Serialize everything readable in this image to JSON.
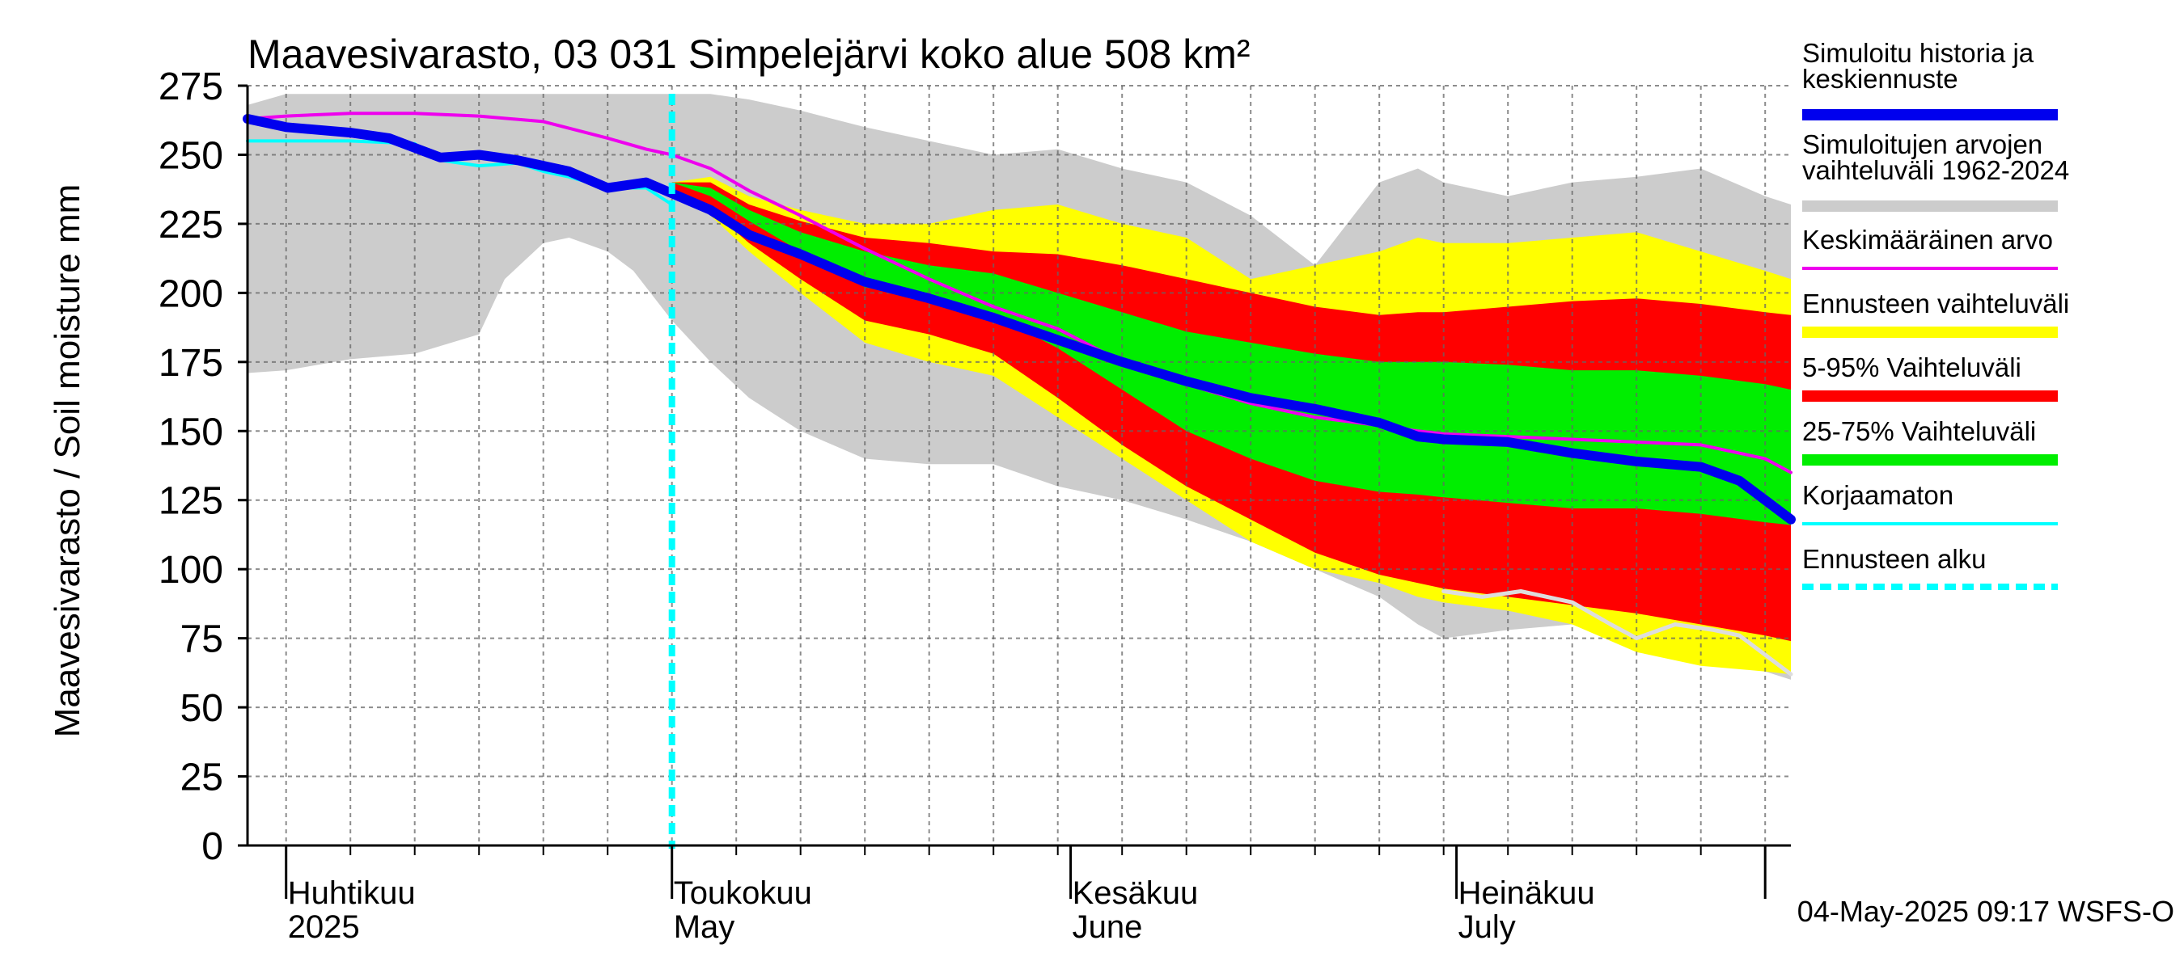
{
  "chart_data": {
    "type": "area",
    "title": "Maavesivarasto, 03 031 Simpelejärvi koko alue 508 km²",
    "ylabel": "Maavesivarasto / Soil moisture   mm",
    "xlabel": "",
    "ylim": [
      0,
      275
    ],
    "yticks": [
      0,
      25,
      50,
      75,
      100,
      125,
      150,
      175,
      200,
      225,
      250,
      275
    ],
    "xlim_days": [
      -3,
      117
    ],
    "x_unit": "days since 2025-04-01",
    "forecast_start_day": 30,
    "grid": true,
    "legend_position": "right",
    "month_labels": [
      {
        "day": 0,
        "fi": "Huhtikuu",
        "en": "2025"
      },
      {
        "day": 30,
        "fi": "Toukokuu",
        "en": "May"
      },
      {
        "day": 61,
        "fi": "Kesäkuu",
        "en": "June"
      },
      {
        "day": 91,
        "fi": "Heinäkuu",
        "en": "July"
      }
    ],
    "legend": [
      {
        "label": "Simuloitu historia ja keskiennuste",
        "color": "#0000ee"
      },
      {
        "label": "Simuloitujen arvojen vaihteluväli 1962-2024",
        "color": "#cccccc"
      },
      {
        "label": "Keskimääräinen arvo",
        "color": "#ee00ee"
      },
      {
        "label": "Ennusteen vaihteluväli",
        "color": "#ffff00"
      },
      {
        "label": "5-95% Vaihteluväli",
        "color": "#ff0000"
      },
      {
        "label": "25-75% Vaihteluväli",
        "color": "#00ee00"
      },
      {
        "label": "Korjaamaton",
        "color": "#00ffff"
      },
      {
        "label": "Ennusteen alku",
        "color": "#00ffff"
      }
    ],
    "timestamp": "04-May-2025 09:17 WSFS-O",
    "series": [
      {
        "name": "Simuloitujen arvojen vaihteluväli 1962-2024",
        "kind": "band",
        "color": "#cccccc",
        "x": [
          -3,
          0,
          5,
          10,
          15,
          17,
          20,
          22,
          25,
          27,
          30,
          33,
          36,
          40,
          45,
          50,
          55,
          60,
          65,
          70,
          75,
          80,
          85,
          88,
          90,
          95,
          100,
          105,
          110,
          115,
          117
        ],
        "lower": [
          171,
          172,
          176,
          178,
          185,
          205,
          218,
          220,
          215,
          208,
          190,
          175,
          162,
          150,
          140,
          138,
          138,
          130,
          125,
          118,
          110,
          100,
          90,
          80,
          75,
          78,
          80,
          75,
          68,
          63,
          60
        ],
        "upper": [
          268,
          272,
          272,
          272,
          272,
          272,
          272,
          272,
          272,
          272,
          272,
          272,
          270,
          266,
          260,
          255,
          250,
          252,
          245,
          240,
          228,
          210,
          240,
          245,
          240,
          235,
          240,
          242,
          245,
          235,
          232
        ]
      },
      {
        "name": "Ennusteen vaihteluväli",
        "kind": "band",
        "color": "#ffff00",
        "x": [
          30,
          33,
          36,
          40,
          45,
          50,
          55,
          60,
          65,
          70,
          75,
          80,
          85,
          88,
          90,
          95,
          100,
          105,
          110,
          115,
          117
        ],
        "lower": [
          238,
          228,
          215,
          200,
          182,
          175,
          170,
          155,
          140,
          125,
          110,
          100,
          95,
          90,
          88,
          85,
          80,
          70,
          65,
          63,
          62
        ],
        "upper": [
          240,
          242,
          235,
          230,
          225,
          225,
          230,
          232,
          225,
          220,
          205,
          210,
          215,
          220,
          218,
          218,
          220,
          222,
          215,
          208,
          205
        ]
      },
      {
        "name": "5-95% Vaihteluväli",
        "kind": "band",
        "color": "#ff0000",
        "x": [
          30,
          33,
          36,
          40,
          45,
          50,
          55,
          60,
          65,
          70,
          75,
          80,
          85,
          88,
          90,
          95,
          100,
          105,
          110,
          115,
          117
        ],
        "lower": [
          238,
          230,
          218,
          205,
          190,
          185,
          178,
          162,
          145,
          130,
          118,
          106,
          98,
          95,
          93,
          90,
          87,
          84,
          80,
          76,
          74
        ],
        "upper": [
          240,
          240,
          232,
          226,
          220,
          218,
          215,
          214,
          210,
          205,
          200,
          195,
          192,
          193,
          193,
          195,
          197,
          198,
          196,
          193,
          192
        ]
      },
      {
        "name": "25-75% Vaihteluväli",
        "kind": "band",
        "color": "#00ee00",
        "x": [
          30,
          33,
          36,
          40,
          45,
          50,
          55,
          60,
          65,
          70,
          75,
          80,
          85,
          88,
          90,
          95,
          100,
          105,
          110,
          115,
          117
        ],
        "lower": [
          240,
          235,
          226,
          215,
          202,
          198,
          192,
          180,
          165,
          150,
          140,
          132,
          128,
          127,
          126,
          124,
          122,
          122,
          120,
          117,
          116
        ],
        "upper": [
          240,
          238,
          230,
          222,
          215,
          210,
          207,
          200,
          193,
          186,
          182,
          178,
          175,
          175,
          175,
          174,
          172,
          172,
          170,
          167,
          165
        ]
      },
      {
        "name": "Keskimääräinen arvo",
        "kind": "line",
        "color": "#ee00ee",
        "x": [
          -3,
          0,
          5,
          10,
          15,
          20,
          25,
          28,
          30,
          33,
          36,
          40,
          45,
          50,
          55,
          60,
          65,
          70,
          75,
          80,
          85,
          88,
          90,
          95,
          100,
          105,
          110,
          115,
          117
        ],
        "y": [
          263,
          264,
          265,
          265,
          264,
          262,
          256,
          252,
          250,
          245,
          237,
          228,
          216,
          205,
          195,
          187,
          175,
          167,
          160,
          155,
          152,
          150,
          149,
          148,
          147,
          146,
          145,
          140,
          135
        ]
      },
      {
        "name": "Korjaamaton",
        "kind": "line",
        "color": "#00ffff",
        "x": [
          -3,
          0,
          5,
          10,
          12,
          15,
          18,
          20,
          22,
          25,
          28,
          30
        ],
        "y": [
          255,
          255,
          255,
          254,
          248,
          246,
          247,
          244,
          242,
          238,
          238,
          232
        ]
      },
      {
        "name": "Simuloitu historia ja keskiennuste",
        "kind": "line",
        "color": "#0000ee",
        "x": [
          -3,
          0,
          5,
          8,
          12,
          15,
          18,
          22,
          25,
          28,
          30,
          33,
          36,
          40,
          45,
          50,
          55,
          60,
          65,
          70,
          75,
          80,
          85,
          88,
          90,
          95,
          100,
          105,
          110,
          113,
          115,
          117
        ],
        "y": [
          263,
          260,
          258,
          256,
          249,
          250,
          248,
          244,
          238,
          240,
          236,
          230,
          221,
          214,
          204,
          198,
          191,
          183,
          175,
          168,
          162,
          158,
          153,
          148,
          147,
          146,
          142,
          139,
          137,
          132,
          125,
          118
        ]
      },
      {
        "name": "Grey lower-envelope trace",
        "kind": "line",
        "color": "#dddddd",
        "x": [
          90,
          93,
          96,
          100,
          103,
          105,
          108,
          111,
          113,
          117
        ],
        "y": [
          92,
          90,
          92,
          88,
          80,
          75,
          80,
          78,
          76,
          62
        ]
      }
    ]
  }
}
